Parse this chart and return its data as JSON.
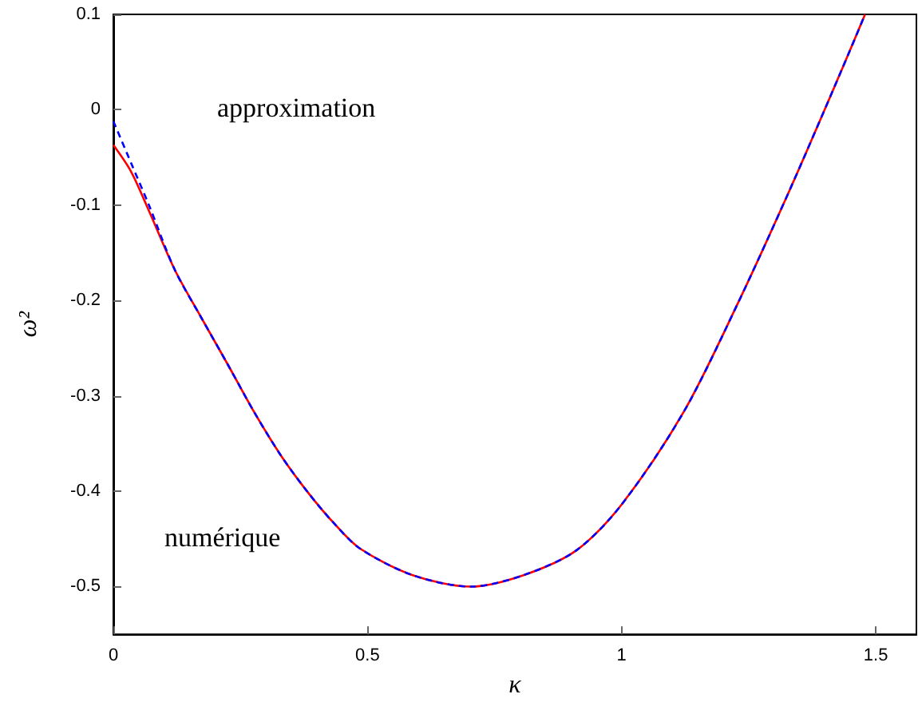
{
  "chart_data": {
    "type": "line",
    "xlabel": "κ",
    "ylabel": "ω²",
    "x": [
      0,
      0.035,
      0.07,
      0.121,
      0.173,
      0.225,
      0.277,
      0.329,
      0.381,
      0.433,
      0.485,
      0.589,
      0.703,
      0.807,
      0.911,
      1.0,
      1.122,
      1.226,
      1.33,
      1.434,
      1.479
    ],
    "series": [
      {
        "color": "#ff0000",
        "line_style": "solid",
        "values": [
          -0.037,
          -0.065,
          -0.106,
          -0.168,
          -0.218,
          -0.267,
          -0.317,
          -0.362,
          -0.4,
          -0.433,
          -0.46,
          -0.488,
          -0.5,
          -0.488,
          -0.462,
          -0.414,
          -0.317,
          -0.206,
          -0.085,
          0.043,
          0.1
        ]
      },
      {
        "color": "#0000ff",
        "line_style": "dashed",
        "values": [
          -0.012,
          -0.056,
          -0.1,
          -0.168,
          -0.218,
          -0.267,
          -0.317,
          -0.362,
          -0.4,
          -0.433,
          -0.46,
          -0.488,
          -0.5,
          -0.488,
          -0.462,
          -0.414,
          -0.317,
          -0.206,
          -0.085,
          0.043,
          0.1
        ]
      }
    ],
    "annotations": [
      "numérique",
      "approximation"
    ],
    "xlim": [
      0,
      1.58
    ],
    "xticks": [
      0,
      0.5,
      1,
      1.5
    ],
    "ylim": [
      -0.55,
      0.1
    ],
    "yticks": [
      -0.5,
      -0.4,
      -0.3,
      -0.2,
      -0.1,
      0,
      0.1
    ],
    "grid": false,
    "marker": "none"
  }
}
